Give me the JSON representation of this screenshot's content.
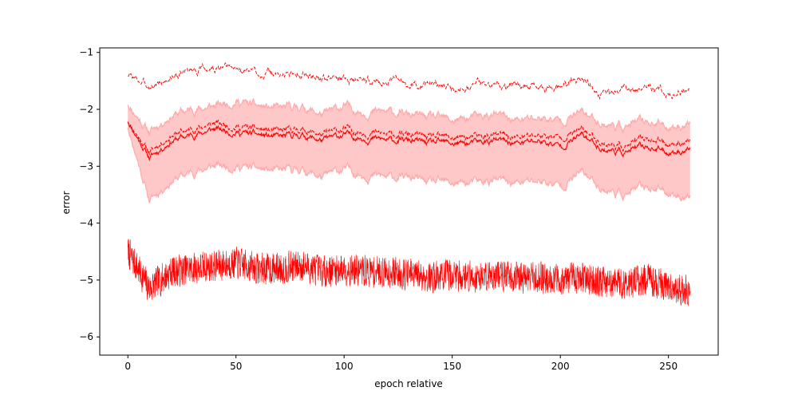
{
  "chart_data": {
    "type": "line",
    "title": "",
    "xlabel": "epoch relative",
    "ylabel": "error",
    "xlim": [
      -13,
      273
    ],
    "ylim": [
      -6.32,
      -0.92
    ],
    "x_ticks": [
      0,
      50,
      100,
      150,
      200,
      250
    ],
    "x_tick_labels": [
      "0",
      "50",
      "100",
      "150",
      "200",
      "250"
    ],
    "y_ticks": [
      -6,
      -5,
      -4,
      -3,
      -2,
      -1
    ],
    "y_tick_labels": [
      "−6",
      "−5",
      "−4",
      "−3",
      "−2",
      "−1"
    ],
    "grid": false,
    "legend": "none",
    "colors": {
      "line": "#ff0000",
      "band_fill": "#ffc8c8",
      "band_edge": "#ffaaaa",
      "axes": "#000000"
    },
    "x_step": 10,
    "series": [
      {
        "role": "upper-dashed-line",
        "style": "dashed",
        "x": [
          0,
          10,
          20,
          30,
          40,
          50,
          60,
          70,
          80,
          90,
          100,
          110,
          120,
          130,
          140,
          150,
          160,
          170,
          180,
          190,
          200,
          210,
          220,
          230,
          240,
          250,
          260
        ],
        "values": [
          -1.4,
          -1.6,
          -1.45,
          -1.3,
          -1.3,
          -1.3,
          -1.35,
          -1.4,
          -1.35,
          -1.45,
          -1.45,
          -1.5,
          -1.5,
          -1.55,
          -1.55,
          -1.6,
          -1.55,
          -1.55,
          -1.6,
          -1.6,
          -1.6,
          -1.45,
          -1.75,
          -1.65,
          -1.6,
          -1.7,
          -1.65
        ]
      },
      {
        "role": "band-upper-edge",
        "style": "solid",
        "x": [
          0,
          10,
          20,
          30,
          40,
          50,
          60,
          70,
          80,
          90,
          100,
          110,
          120,
          130,
          140,
          150,
          160,
          170,
          180,
          190,
          200,
          210,
          220,
          230,
          240,
          250,
          260
        ],
        "values": [
          -1.9,
          -2.4,
          -2.1,
          -2.0,
          -1.95,
          -1.85,
          -1.95,
          -2.0,
          -1.95,
          -2.1,
          -1.95,
          -2.05,
          -2.05,
          -2.1,
          -2.15,
          -2.2,
          -2.15,
          -2.1,
          -2.2,
          -2.15,
          -2.2,
          -2.05,
          -2.25,
          -2.3,
          -2.2,
          -2.3,
          -2.25
        ]
      },
      {
        "role": "dashed-mean-line",
        "style": "dashed",
        "x": [
          0,
          10,
          20,
          30,
          40,
          50,
          60,
          70,
          80,
          90,
          100,
          110,
          120,
          130,
          140,
          150,
          160,
          170,
          180,
          190,
          200,
          210,
          220,
          230,
          240,
          250,
          260
        ],
        "values": [
          -2.2,
          -2.75,
          -2.45,
          -2.35,
          -2.25,
          -2.3,
          -2.35,
          -2.4,
          -2.35,
          -2.45,
          -2.35,
          -2.4,
          -2.45,
          -2.45,
          -2.5,
          -2.5,
          -2.5,
          -2.45,
          -2.5,
          -2.45,
          -2.5,
          -2.35,
          -2.6,
          -2.65,
          -2.5,
          -2.6,
          -2.55
        ]
      },
      {
        "role": "solid-mean-line",
        "style": "solid",
        "x": [
          0,
          10,
          20,
          30,
          40,
          50,
          60,
          70,
          80,
          90,
          100,
          110,
          120,
          130,
          140,
          150,
          160,
          170,
          180,
          190,
          200,
          210,
          220,
          230,
          240,
          250,
          260
        ],
        "values": [
          -2.2,
          -2.85,
          -2.55,
          -2.45,
          -2.35,
          -2.4,
          -2.45,
          -2.5,
          -2.45,
          -2.55,
          -2.45,
          -2.5,
          -2.55,
          -2.55,
          -2.6,
          -2.6,
          -2.6,
          -2.55,
          -2.6,
          -2.55,
          -2.65,
          -2.45,
          -2.7,
          -2.75,
          -2.65,
          -2.75,
          -2.7
        ]
      },
      {
        "role": "band-lower-edge",
        "style": "solid",
        "x": [
          0,
          10,
          20,
          30,
          40,
          50,
          60,
          70,
          80,
          90,
          100,
          110,
          120,
          130,
          140,
          150,
          160,
          170,
          180,
          190,
          200,
          210,
          220,
          230,
          240,
          250,
          260
        ],
        "values": [
          -2.3,
          -3.6,
          -3.25,
          -3.1,
          -3.0,
          -3.0,
          -3.05,
          -3.1,
          -3.05,
          -3.2,
          -3.05,
          -3.15,
          -3.2,
          -3.2,
          -3.3,
          -3.3,
          -3.3,
          -3.25,
          -3.3,
          -3.25,
          -3.35,
          -3.1,
          -3.4,
          -3.5,
          -3.35,
          -3.45,
          -3.55
        ]
      },
      {
        "role": "noisy-bottom-line",
        "style": "solid",
        "x": [
          0,
          10,
          20,
          30,
          40,
          50,
          60,
          70,
          80,
          90,
          100,
          110,
          120,
          130,
          140,
          150,
          160,
          170,
          180,
          190,
          200,
          210,
          220,
          230,
          240,
          250,
          260
        ],
        "values": [
          -4.5,
          -5.15,
          -4.85,
          -4.8,
          -4.75,
          -4.7,
          -4.8,
          -4.8,
          -4.75,
          -4.85,
          -4.8,
          -4.85,
          -4.85,
          -4.9,
          -4.95,
          -4.9,
          -4.95,
          -4.9,
          -4.95,
          -4.95,
          -5.0,
          -4.95,
          -5.05,
          -5.05,
          -5.0,
          -5.1,
          -5.2
        ]
      }
    ]
  }
}
